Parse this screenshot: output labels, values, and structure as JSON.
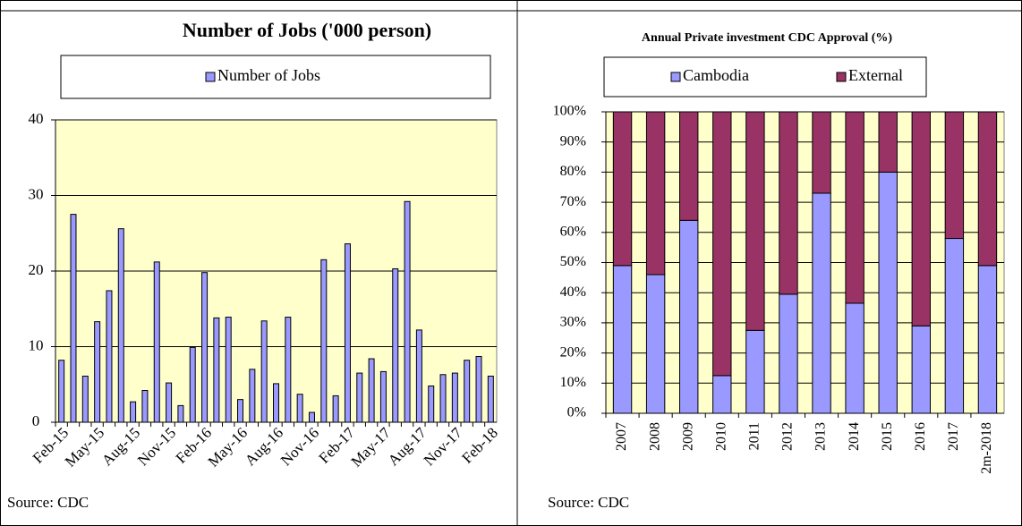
{
  "chart_data": [
    {
      "type": "bar",
      "title": "Number of Jobs ('000 person)",
      "source": "Source: CDC",
      "categories": [
        "Feb-15",
        null,
        null,
        "May-15",
        null,
        null,
        "Aug-15",
        null,
        null,
        "Nov-15",
        null,
        null,
        "Feb-16",
        null,
        null,
        "May-16",
        null,
        null,
        "Aug-16",
        null,
        null,
        "Nov-16",
        null,
        null,
        "Feb-17",
        null,
        null,
        "May-17",
        null,
        null,
        "Aug-17",
        null,
        null,
        "Nov-17",
        null,
        null,
        "Feb-18"
      ],
      "series": [
        {
          "name": "Number of Jobs",
          "color": "#9999ff",
          "values": [
            8.2,
            27.5,
            6.1,
            13.3,
            17.4,
            25.6,
            2.7,
            4.2,
            21.2,
            5.2,
            2.2,
            9.9,
            19.8,
            13.8,
            13.9,
            3.0,
            7.0,
            13.4,
            5.1,
            13.9,
            3.7,
            1.3,
            21.5,
            3.5,
            23.6,
            6.5,
            8.4,
            6.7,
            20.3,
            29.2,
            12.2,
            4.8,
            6.3,
            6.5,
            8.2,
            8.7,
            6.1
          ]
        }
      ],
      "ylim": [
        0,
        40
      ],
      "yticks": [
        0,
        10,
        20,
        30,
        40
      ],
      "grid": true
    },
    {
      "type": "stacked_bar",
      "title": "Annual Private investment CDC Approval (%)",
      "source": "Source: CDC",
      "categories": [
        "2007",
        "2008",
        "2009",
        "2010",
        "2011",
        "2012",
        "2013",
        "2014",
        "2015",
        "2016",
        "2017",
        "2m-2018"
      ],
      "series": [
        {
          "name": "Cambodia",
          "color": "#9999ff",
          "values": [
            49,
            46,
            64,
            12.5,
            27.5,
            39.5,
            73,
            36.5,
            80,
            29,
            58,
            49
          ]
        },
        {
          "name": "External",
          "color": "#993366",
          "values": [
            51,
            54,
            36,
            87.5,
            72.5,
            60.5,
            27,
            63.5,
            20,
            71,
            42,
            51
          ]
        }
      ],
      "ylim": [
        0,
        100
      ],
      "yticks": [
        {
          "value": 0,
          "label": "0%"
        },
        {
          "value": 10,
          "label": "10%"
        },
        {
          "value": 20,
          "label": "20%"
        },
        {
          "value": 30,
          "label": "30%"
        },
        {
          "value": 40,
          "label": "40%"
        },
        {
          "value": 50,
          "label": "50%"
        },
        {
          "value": 60,
          "label": "60%"
        },
        {
          "value": 70,
          "label": "70%"
        },
        {
          "value": 80,
          "label": "80%"
        },
        {
          "value": 90,
          "label": "90%"
        },
        {
          "value": 100,
          "label": "100%"
        }
      ],
      "grid": true
    }
  ]
}
